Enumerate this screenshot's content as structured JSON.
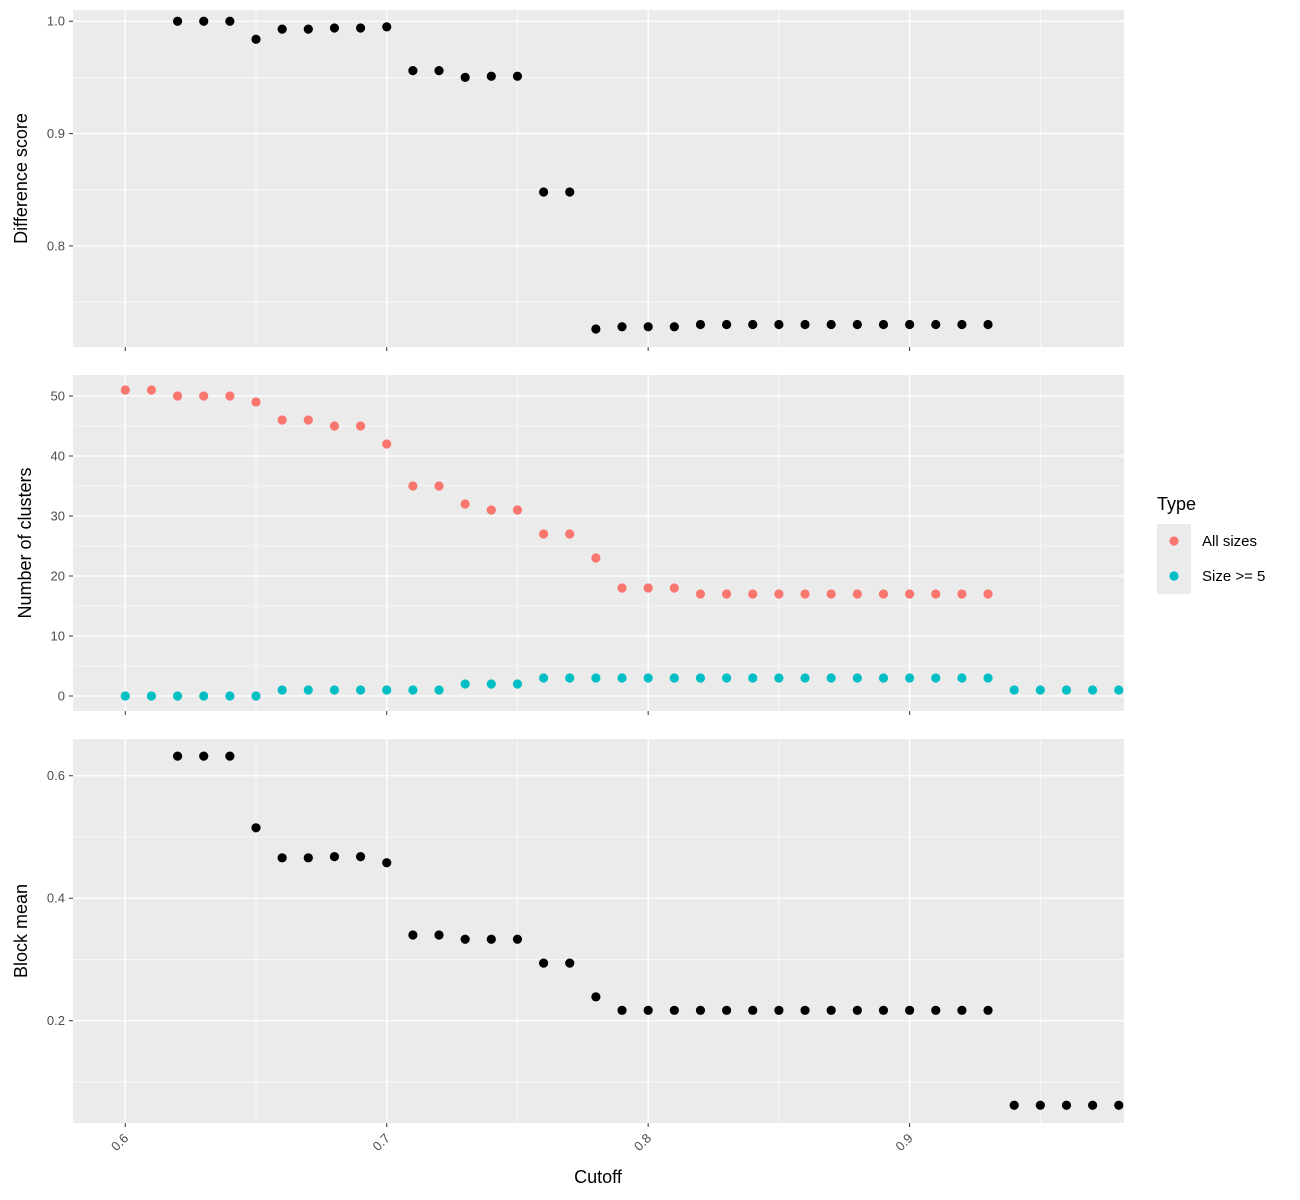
{
  "x_axis": {
    "label": "Cutoff",
    "ticks": [
      0.6,
      0.7,
      0.8,
      0.9
    ],
    "tick_labels": [
      "0.6",
      "0.7",
      "0.8",
      "0.9"
    ],
    "range": [
      0.58,
      0.982
    ]
  },
  "legend": {
    "title": "Type",
    "position": "right"
  },
  "chart_data": [
    {
      "type": "scatter",
      "panel": "top",
      "ylabel": "Difference score",
      "ylim": [
        0.71,
        1.01
      ],
      "yticks": [
        0.8,
        0.9,
        1.0
      ],
      "ytick_labels": [
        "0.8",
        "0.9",
        "1.0"
      ],
      "series": [
        {
          "color": "#000000",
          "x": [
            0.62,
            0.63,
            0.64,
            0.65,
            0.66,
            0.67,
            0.68,
            0.69,
            0.7,
            0.71,
            0.72,
            0.73,
            0.74,
            0.75,
            0.76,
            0.77,
            0.78,
            0.79,
            0.8,
            0.81,
            0.82,
            0.83,
            0.84,
            0.85,
            0.86,
            0.87,
            0.88,
            0.89,
            0.9,
            0.91,
            0.92,
            0.93
          ],
          "y": [
            1.0,
            1.0,
            1.0,
            0.984,
            0.993,
            0.993,
            0.994,
            0.994,
            0.995,
            0.956,
            0.956,
            0.95,
            0.951,
            0.951,
            0.848,
            0.848,
            0.726,
            0.728,
            0.728,
            0.728,
            0.73,
            0.73,
            0.73,
            0.73,
            0.73,
            0.73,
            0.73,
            0.73,
            0.73,
            0.73,
            0.73,
            0.73
          ]
        }
      ]
    },
    {
      "type": "scatter",
      "panel": "middle",
      "ylabel": "Number of clusters",
      "ylim": [
        -2.5,
        53.5
      ],
      "yticks": [
        0,
        10,
        20,
        30,
        40,
        50
      ],
      "ytick_labels": [
        "0",
        "10",
        "20",
        "30",
        "40",
        "50"
      ],
      "series": [
        {
          "name": "All sizes",
          "color": "#F8766D",
          "x": [
            0.6,
            0.61,
            0.62,
            0.63,
            0.64,
            0.65,
            0.66,
            0.67,
            0.68,
            0.69,
            0.7,
            0.71,
            0.72,
            0.73,
            0.74,
            0.75,
            0.76,
            0.77,
            0.78,
            0.79,
            0.8,
            0.81,
            0.82,
            0.83,
            0.84,
            0.85,
            0.86,
            0.87,
            0.88,
            0.89,
            0.9,
            0.91,
            0.92,
            0.93
          ],
          "y": [
            51,
            51,
            50,
            50,
            50,
            49,
            46,
            46,
            45,
            45,
            42,
            35,
            35,
            32,
            31,
            31,
            27,
            27,
            23,
            18,
            18,
            18,
            17,
            17,
            17,
            17,
            17,
            17,
            17,
            17,
            17,
            17,
            17,
            17
          ]
        },
        {
          "name": "Size >= 5",
          "color": "#00BFC4",
          "x": [
            0.6,
            0.61,
            0.62,
            0.63,
            0.64,
            0.65,
            0.66,
            0.67,
            0.68,
            0.69,
            0.7,
            0.71,
            0.72,
            0.73,
            0.74,
            0.75,
            0.76,
            0.77,
            0.78,
            0.79,
            0.8,
            0.81,
            0.82,
            0.83,
            0.84,
            0.85,
            0.86,
            0.87,
            0.88,
            0.89,
            0.9,
            0.91,
            0.92,
            0.93,
            0.94,
            0.95,
            0.96,
            0.97,
            0.98
          ],
          "y": [
            0,
            0,
            0,
            0,
            0,
            0,
            1,
            1,
            1,
            1,
            1,
            1,
            1,
            2,
            2,
            2,
            3,
            3,
            3,
            3,
            3,
            3,
            3,
            3,
            3,
            3,
            3,
            3,
            3,
            3,
            3,
            3,
            3,
            3,
            1,
            1,
            1,
            1,
            1
          ]
        }
      ]
    },
    {
      "type": "scatter",
      "panel": "bottom",
      "ylabel": "Block mean",
      "ylim": [
        0.033,
        0.66
      ],
      "yticks": [
        0.2,
        0.4,
        0.6
      ],
      "ytick_labels": [
        "0.2",
        "0.4",
        "0.6"
      ],
      "series": [
        {
          "color": "#000000",
          "x": [
            0.62,
            0.63,
            0.64,
            0.65,
            0.66,
            0.67,
            0.68,
            0.69,
            0.7,
            0.71,
            0.72,
            0.73,
            0.74,
            0.75,
            0.76,
            0.77,
            0.78,
            0.79,
            0.8,
            0.81,
            0.82,
            0.83,
            0.84,
            0.85,
            0.86,
            0.87,
            0.88,
            0.89,
            0.9,
            0.91,
            0.92,
            0.93,
            0.94,
            0.95,
            0.96,
            0.97,
            0.98
          ],
          "y": [
            0.632,
            0.632,
            0.632,
            0.515,
            0.466,
            0.466,
            0.468,
            0.468,
            0.458,
            0.34,
            0.34,
            0.333,
            0.333,
            0.333,
            0.294,
            0.294,
            0.239,
            0.217,
            0.217,
            0.217,
            0.217,
            0.217,
            0.217,
            0.217,
            0.217,
            0.217,
            0.217,
            0.217,
            0.217,
            0.217,
            0.217,
            0.217,
            0.062,
            0.062,
            0.062,
            0.062,
            0.062
          ]
        }
      ]
    }
  ]
}
